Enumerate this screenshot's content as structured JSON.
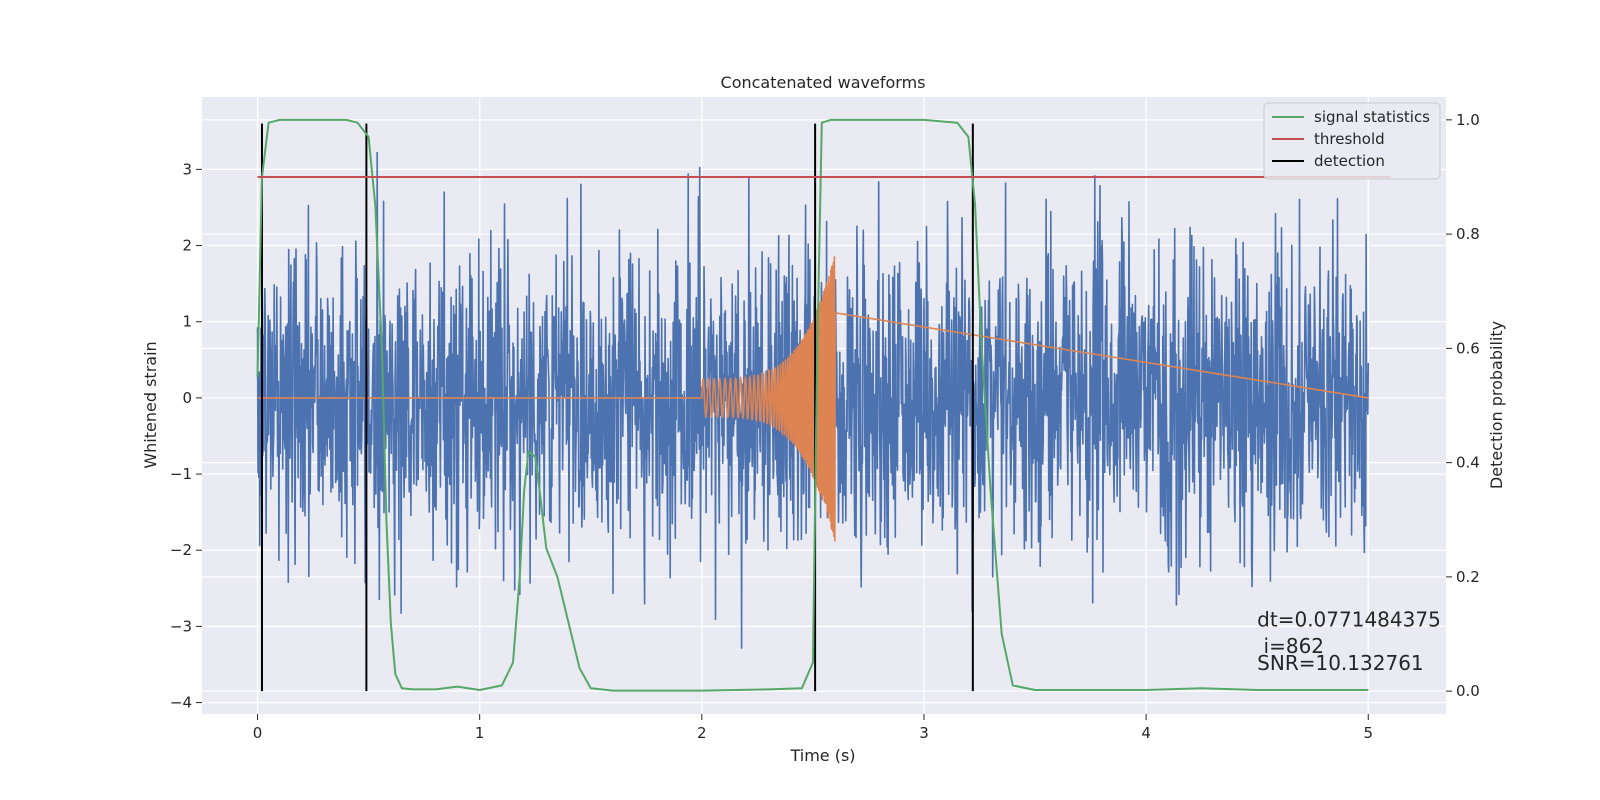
{
  "chart_data": {
    "type": "line",
    "title": "Concatenated waveforms",
    "xlabel": "Time (s)",
    "ylabel_left": "Whitened strain",
    "ylabel_right": "Detection probability",
    "xlim": [
      -0.25,
      5.35
    ],
    "ylim_left": [
      -4.15,
      3.95
    ],
    "ylim_right": [
      -0.04,
      1.04
    ],
    "x_ticks": [
      0,
      1,
      2,
      3,
      4,
      5
    ],
    "y_ticks_left": [
      -4,
      -3,
      -2,
      -1,
      0,
      1,
      2,
      3
    ],
    "y_ticks_right": [
      0.0,
      0.2,
      0.4,
      0.6,
      0.8,
      1.0
    ],
    "x_tick_labels": [
      "0",
      "1",
      "2",
      "3",
      "4",
      "5"
    ],
    "y_tick_labels_left": [
      "−4",
      "−3",
      "−2",
      "−1",
      "0",
      "1",
      "2",
      "3"
    ],
    "y_tick_labels_right": [
      "0.0",
      "0.2",
      "0.4",
      "0.6",
      "0.8",
      "1.0"
    ],
    "grid": true,
    "legend_position": "top-right",
    "legend": [
      {
        "label": "signal statistics",
        "color": "#55a868"
      },
      {
        "label": "threshold",
        "color": "#c44e52"
      },
      {
        "label": "detection",
        "color": "#000000"
      }
    ],
    "series": [
      {
        "name": "whitened strain noise",
        "axis": "left",
        "color": "#4c72b0",
        "x_range": [
          0,
          5
        ],
        "approx_amplitude_sigma": 1.0,
        "envelope_upper": 3.6,
        "envelope_lower": -3.85
      },
      {
        "name": "injected chirp",
        "axis": "left",
        "color": "#dd8452",
        "zero_level": 0,
        "chirp_start": 2.0,
        "chirp_end": 2.6,
        "amp_start": 0.25,
        "amp_end": 1.9
      },
      {
        "name": "signal statistics",
        "axis": "right",
        "color": "#55a868",
        "x": [
          0,
          0.02,
          0.05,
          0.1,
          0.2,
          0.3,
          0.4,
          0.45,
          0.5,
          0.53,
          0.56,
          0.58,
          0.6,
          0.62,
          0.65,
          0.7,
          0.8,
          0.9,
          1.0,
          1.1,
          1.15,
          1.18,
          1.2,
          1.22,
          1.25,
          1.27,
          1.3,
          1.35,
          1.4,
          1.45,
          1.5,
          1.6,
          2.0,
          2.3,
          2.45,
          2.5,
          2.52,
          2.54,
          2.58,
          2.7,
          3.0,
          3.15,
          3.2,
          3.23,
          3.26,
          3.3,
          3.35,
          3.4,
          3.5,
          4.0,
          4.25,
          4.5,
          5.0
        ],
        "y": [
          0.55,
          0.9,
          0.995,
          1.0,
          1.0,
          1.0,
          1.0,
          0.995,
          0.97,
          0.85,
          0.6,
          0.3,
          0.12,
          0.03,
          0.005,
          0.003,
          0.003,
          0.008,
          0.002,
          0.01,
          0.05,
          0.2,
          0.35,
          0.42,
          0.41,
          0.35,
          0.25,
          0.2,
          0.12,
          0.04,
          0.005,
          0.001,
          0.001,
          0.003,
          0.005,
          0.05,
          0.6,
          0.995,
          1.0,
          1.0,
          1.0,
          0.995,
          0.97,
          0.85,
          0.6,
          0.35,
          0.1,
          0.01,
          0.002,
          0.002,
          0.005,
          0.002,
          0.002
        ]
      },
      {
        "name": "threshold",
        "axis": "right",
        "color": "#c44e52",
        "x": [
          0,
          5.1
        ],
        "y": [
          0.9,
          0.9
        ]
      }
    ],
    "detections": [
      0.02,
      0.49,
      2.51,
      3.22
    ],
    "detection_range_left": [
      -3.85,
      3.6
    ],
    "annotations": [
      {
        "text": "dt=0.0771484375",
        "x": 4.5,
        "y": -3.0
      },
      {
        "text": " i=862",
        "x": 4.5,
        "y": -3.35
      },
      {
        "text": "SNR=10.132761",
        "x": 4.5,
        "y": -3.57
      }
    ]
  }
}
